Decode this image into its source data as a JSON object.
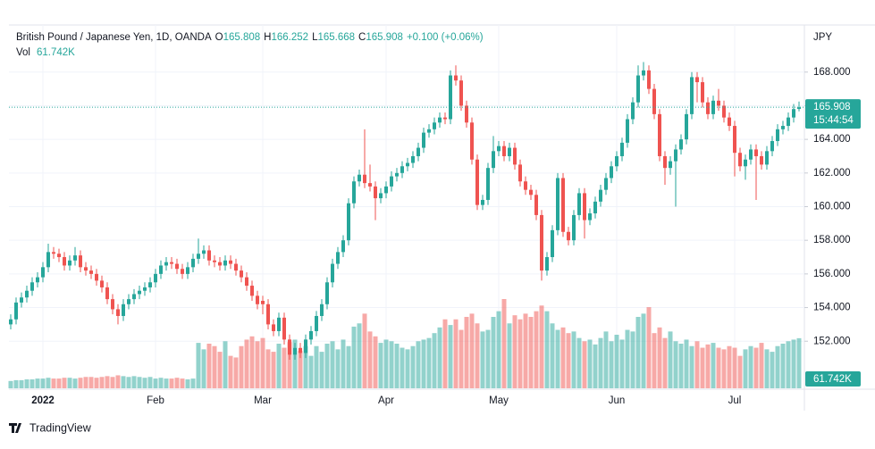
{
  "chart_data": {
    "type": "candlestick",
    "legend": {
      "symbol": "British Pound / Japanese Yen, 1D, OANDA",
      "ohlc": [
        {
          "label": "O",
          "value": "165.808"
        },
        {
          "label": "H",
          "value": "166.252"
        },
        {
          "label": "L",
          "value": "165.668"
        },
        {
          "label": "C",
          "value": "165.908"
        }
      ],
      "change": "+0.100 (+0.06%)",
      "volume_name": "Vol",
      "volume_value": "61.742K"
    },
    "currency": "JPY",
    "last_price": {
      "value": "165.908",
      "countdown": "15:44:54"
    },
    "brand": "TradingView",
    "up_color": "#26a69a",
    "down_color": "#ef5350",
    "grid": true,
    "ylim": [
      149.2,
      170.8
    ],
    "yticks": [
      {
        "value": 152,
        "label": "152.000"
      },
      {
        "value": 154,
        "label": "154.000"
      },
      {
        "value": 156,
        "label": "156.000"
      },
      {
        "value": 158,
        "label": "158.000"
      },
      {
        "value": 160,
        "label": "160.000"
      },
      {
        "value": 162,
        "label": "162.000"
      },
      {
        "value": 164,
        "label": "164.000"
      },
      {
        "value": 166,
        "label": "166.000"
      },
      {
        "value": 168,
        "label": "168.000"
      }
    ],
    "xticks": [
      {
        "value": 6,
        "label": "2022"
      },
      {
        "value": 27,
        "label": "Feb"
      },
      {
        "value": 47,
        "label": "Mar"
      },
      {
        "value": 70,
        "label": "Apr"
      },
      {
        "value": 91,
        "label": "May"
      },
      {
        "value": 113,
        "label": "Jun"
      },
      {
        "value": 135,
        "label": "Jul"
      }
    ],
    "open": [
      153.0,
      153.3,
      154.3,
      154.6,
      155.0,
      155.5,
      155.8,
      156.4,
      157.3,
      157.2,
      157.0,
      156.5,
      156.8,
      157.1,
      156.4,
      156.2,
      156.0,
      155.6,
      155.2,
      154.5,
      153.9,
      153.5,
      154.2,
      154.5,
      154.8,
      155.0,
      155.2,
      155.5,
      156.0,
      156.5,
      156.7,
      156.6,
      156.3,
      156.0,
      156.4,
      156.9,
      157.2,
      157.4,
      156.8,
      156.7,
      156.5,
      156.8,
      156.6,
      156.2,
      155.8,
      155.3,
      154.7,
      154.4,
      154.2,
      153.0,
      152.6,
      153.4,
      152.1,
      151.2,
      151.6,
      151.3,
      152.1,
      152.6,
      153.5,
      154.2,
      155.5,
      156.6,
      157.3,
      158.0,
      160.2,
      161.5,
      161.9,
      161.4,
      161.2,
      160.5,
      160.8,
      161.2,
      161.8,
      162.0,
      162.4,
      162.6,
      163.0,
      163.5,
      164.4,
      164.6,
      165.0,
      165.3,
      165.2,
      167.8,
      167.5,
      166.0,
      165.0,
      162.8,
      160.1,
      160.4,
      162.3,
      163.3,
      163.6,
      163.0,
      163.5,
      162.5,
      161.5,
      161.0,
      160.7,
      159.5,
      156.2,
      157.0,
      158.6,
      161.7,
      158.5,
      158.0,
      159.5,
      160.8,
      159.2,
      159.6,
      160.3,
      161.0,
      161.7,
      162.4,
      163.0,
      163.8,
      165.2,
      166.2,
      167.8,
      168.1,
      167.0,
      165.5,
      163.0,
      162.3,
      162.7,
      163.4,
      164.0,
      165.5,
      167.7,
      167.4,
      166.2,
      165.5,
      166.3,
      166.0,
      165.3,
      164.8,
      163.2,
      162.4,
      162.8,
      163.4,
      163.0,
      162.5,
      163.3,
      163.9,
      164.6,
      164.8,
      165.3,
      165.808
    ],
    "high": [
      153.6,
      154.6,
      154.9,
      155.3,
      155.8,
      156.1,
      156.7,
      157.8,
      157.6,
      157.5,
      157.3,
      157.1,
      157.6,
      157.4,
      156.7,
      156.5,
      156.3,
      155.9,
      155.5,
      154.8,
      154.2,
      154.5,
      154.8,
      155.1,
      155.3,
      155.5,
      155.8,
      156.3,
      156.8,
      157.0,
      157.0,
      156.9,
      156.6,
      156.7,
      157.2,
      158.1,
      157.7,
      157.7,
      157.1,
      157.0,
      157.1,
      157.1,
      156.9,
      156.5,
      156.1,
      155.6,
      155.0,
      154.7,
      154.5,
      153.3,
      153.7,
      153.7,
      152.4,
      151.9,
      151.9,
      152.4,
      152.9,
      153.8,
      154.5,
      155.8,
      156.9,
      157.6,
      158.3,
      160.5,
      161.8,
      162.2,
      164.6,
      162.5,
      161.5,
      161.1,
      161.5,
      162.1,
      162.3,
      162.7,
      162.9,
      163.3,
      163.8,
      164.7,
      164.9,
      165.3,
      165.6,
      165.6,
      168.1,
      168.4,
      167.8,
      166.3,
      165.3,
      163.1,
      160.7,
      162.6,
      164.2,
      163.9,
      163.9,
      163.8,
      163.8,
      162.8,
      161.8,
      161.3,
      161.0,
      159.8,
      157.3,
      158.9,
      162.0,
      162.0,
      158.8,
      159.8,
      161.1,
      161.1,
      159.9,
      160.6,
      161.3,
      162.0,
      162.7,
      163.3,
      164.1,
      165.5,
      166.5,
      168.4,
      168.6,
      168.4,
      167.3,
      165.8,
      163.3,
      163.0,
      163.7,
      164.3,
      165.8,
      168.0,
      168.0,
      167.7,
      166.5,
      166.6,
      167.0,
      166.3,
      165.6,
      165.1,
      163.5,
      163.1,
      163.7,
      163.7,
      163.3,
      163.6,
      164.2,
      164.9,
      165.1,
      165.6,
      166.1,
      166.252
    ],
    "low": [
      152.7,
      153.0,
      154.0,
      154.3,
      154.7,
      155.2,
      155.5,
      156.1,
      156.9,
      156.7,
      156.2,
      156.2,
      156.5,
      156.1,
      155.9,
      155.7,
      155.3,
      154.9,
      154.2,
      153.6,
      153.0,
      153.2,
      153.9,
      154.2,
      154.5,
      154.7,
      154.9,
      155.2,
      155.7,
      156.2,
      156.3,
      156.0,
      155.7,
      155.7,
      156.1,
      156.6,
      156.9,
      156.5,
      156.4,
      156.2,
      156.2,
      156.3,
      155.9,
      155.5,
      155.0,
      154.4,
      153.9,
      153.6,
      152.7,
      152.3,
      152.3,
      151.8,
      150.9,
      150.9,
      151.0,
      151.0,
      151.8,
      152.3,
      153.2,
      153.9,
      155.2,
      156.3,
      157.0,
      157.7,
      159.9,
      161.2,
      161.1,
      160.9,
      159.2,
      160.2,
      160.5,
      160.9,
      161.5,
      161.7,
      162.1,
      162.3,
      162.7,
      163.2,
      164.1,
      164.3,
      164.7,
      164.9,
      164.9,
      167.2,
      165.7,
      164.7,
      162.5,
      159.8,
      159.8,
      160.1,
      162.0,
      163.0,
      162.7,
      162.7,
      162.2,
      161.2,
      160.7,
      160.4,
      159.2,
      155.6,
      155.9,
      156.7,
      158.3,
      158.2,
      157.7,
      157.7,
      159.2,
      158.1,
      158.9,
      159.3,
      160.0,
      160.7,
      161.4,
      162.1,
      162.7,
      163.5,
      164.9,
      165.9,
      167.5,
      166.7,
      165.2,
      162.7,
      161.3,
      161.9,
      160.0,
      163.1,
      163.7,
      165.2,
      166.2,
      165.9,
      165.2,
      165.2,
      165.7,
      165.0,
      164.5,
      161.8,
      162.1,
      161.6,
      162.5,
      160.4,
      162.2,
      162.2,
      163.0,
      163.6,
      164.3,
      164.5,
      165.0,
      165.668
    ],
    "close": [
      153.3,
      154.3,
      154.6,
      155.0,
      155.5,
      155.8,
      156.4,
      157.3,
      157.2,
      157.0,
      156.5,
      156.8,
      157.1,
      156.4,
      156.2,
      156.0,
      155.6,
      155.2,
      154.5,
      153.9,
      153.5,
      154.2,
      154.5,
      154.8,
      155.0,
      155.2,
      155.5,
      156.0,
      156.5,
      156.7,
      156.6,
      156.3,
      156.0,
      156.4,
      156.9,
      157.2,
      157.4,
      156.8,
      156.7,
      156.5,
      156.8,
      156.6,
      156.2,
      155.8,
      155.3,
      154.7,
      154.2,
      154.2,
      153.0,
      152.6,
      153.4,
      152.1,
      151.2,
      151.6,
      151.3,
      152.1,
      152.6,
      153.5,
      154.2,
      155.5,
      156.6,
      157.3,
      158.0,
      160.2,
      161.5,
      161.9,
      161.4,
      161.2,
      160.5,
      160.8,
      161.2,
      161.8,
      162.0,
      162.4,
      162.6,
      163.0,
      163.5,
      164.4,
      164.6,
      165.0,
      165.3,
      165.2,
      167.8,
      167.5,
      166.0,
      165.0,
      162.8,
      160.1,
      160.4,
      162.3,
      163.3,
      163.6,
      163.0,
      163.5,
      162.5,
      161.5,
      161.0,
      160.7,
      159.5,
      156.2,
      157.0,
      158.6,
      161.7,
      158.5,
      158.0,
      159.5,
      160.8,
      159.2,
      159.6,
      160.3,
      161.0,
      161.7,
      162.4,
      163.0,
      163.8,
      165.2,
      166.2,
      167.8,
      168.1,
      167.0,
      165.5,
      163.0,
      162.3,
      162.7,
      163.4,
      164.0,
      165.5,
      167.7,
      167.4,
      166.2,
      165.5,
      166.3,
      166.0,
      165.3,
      164.8,
      163.2,
      162.4,
      162.8,
      163.4,
      163.0,
      162.5,
      163.3,
      163.9,
      164.6,
      164.8,
      165.3,
      165.8,
      165.908
    ],
    "volume": [
      9,
      10,
      10,
      11,
      11,
      12,
      12,
      13,
      12,
      12,
      13,
      13,
      12,
      13,
      14,
      14,
      13,
      14,
      15,
      14,
      16,
      15,
      14,
      15,
      14,
      13,
      14,
      12,
      13,
      12,
      12,
      13,
      12,
      11,
      12,
      56,
      48,
      55,
      52,
      45,
      58,
      40,
      38,
      52,
      60,
      64,
      58,
      62,
      48,
      45,
      55,
      50,
      57,
      60,
      46,
      52,
      40,
      52,
      45,
      55,
      58,
      48,
      60,
      52,
      76,
      80,
      92,
      70,
      64,
      56,
      60,
      58,
      55,
      50,
      48,
      52,
      58,
      60,
      62,
      68,
      75,
      85,
      78,
      85,
      72,
      88,
      92,
      80,
      70,
      72,
      88,
      95,
      110,
      80,
      90,
      85,
      92,
      88,
      95,
      102,
      95,
      80,
      72,
      75,
      68,
      70,
      62,
      58,
      60,
      54,
      62,
      70,
      58,
      66,
      60,
      72,
      70,
      88,
      92,
      100,
      68,
      75,
      62,
      70,
      58,
      55,
      60,
      52,
      58,
      50,
      54,
      56,
      50,
      48,
      52,
      50,
      40,
      48,
      52,
      50,
      56,
      48,
      45,
      52,
      55,
      58,
      60,
      61.742
    ]
  }
}
